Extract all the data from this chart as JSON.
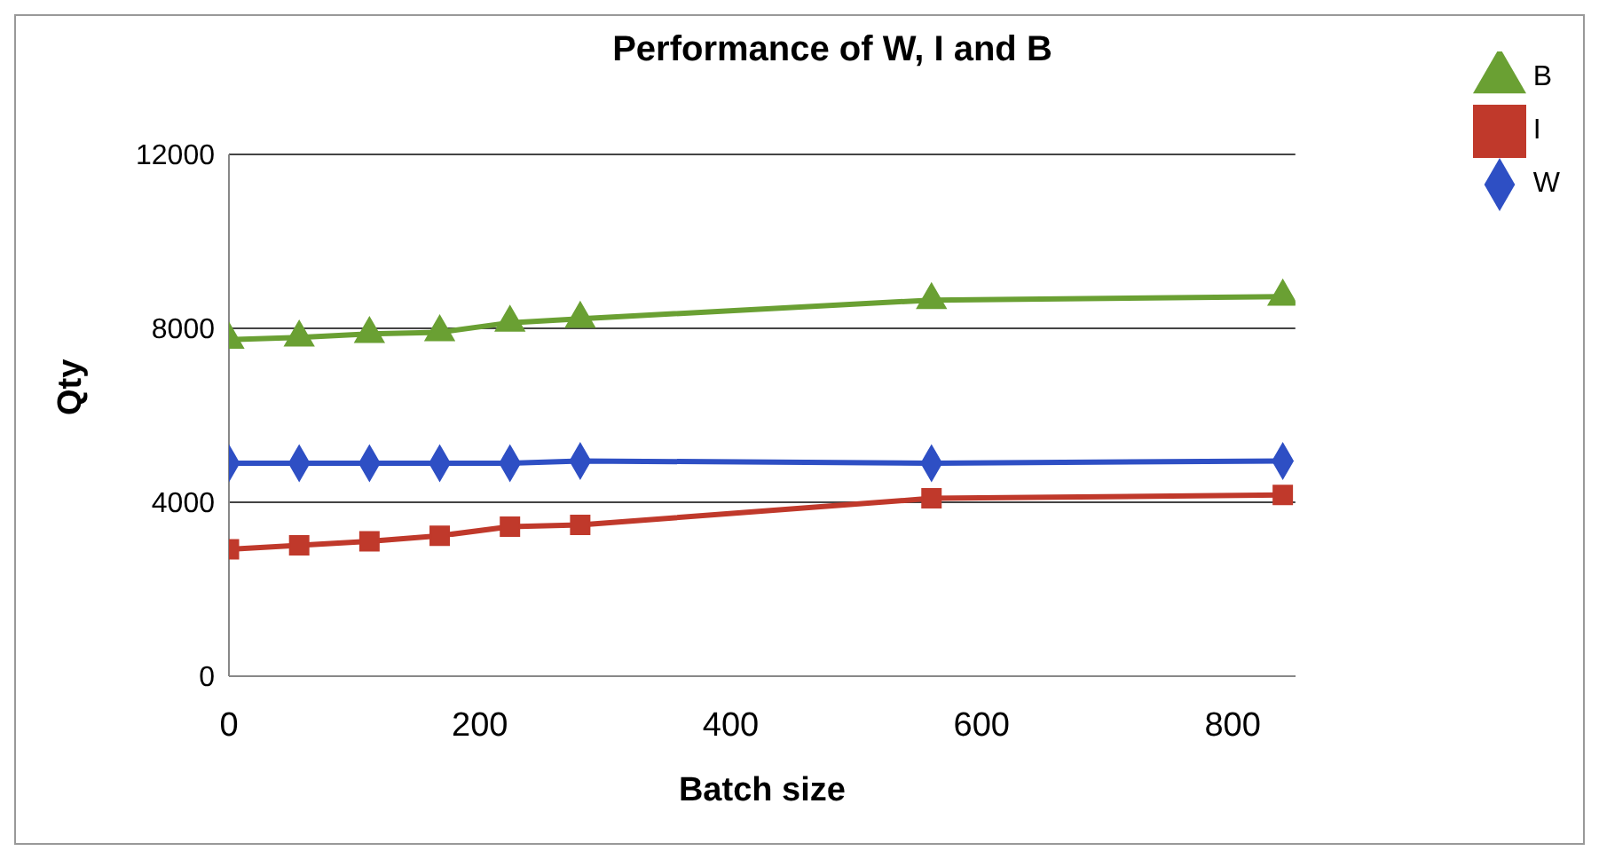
{
  "chart_data": {
    "type": "line",
    "title": "Performance of W, I and B",
    "xlabel": "Batch size",
    "ylabel": "Qty",
    "x": [
      0,
      56,
      112,
      168,
      224,
      280,
      560,
      840
    ],
    "series": [
      {
        "name": "W",
        "color": "#2e4fc4",
        "marker": "diamond",
        "values": [
          4900,
          4900,
          4900,
          4900,
          4900,
          4950,
          4900,
          4950
        ]
      },
      {
        "name": "I",
        "color": "#c0392b",
        "marker": "square",
        "values": [
          2920,
          3010,
          3100,
          3230,
          3440,
          3480,
          4090,
          4170
        ]
      },
      {
        "name": "B",
        "color": "#6aa033",
        "marker": "triangle",
        "values": [
          7740,
          7790,
          7870,
          7910,
          8130,
          8220,
          8650,
          8730
        ]
      }
    ],
    "xlim": [
      0,
      850
    ],
    "xticks": [
      0,
      200,
      400,
      600,
      800
    ],
    "ylim": [
      0,
      12000
    ],
    "yticks": [
      0,
      4000,
      8000,
      12000
    ],
    "grid": "y",
    "legend": "top right",
    "line_style": "solid"
  }
}
